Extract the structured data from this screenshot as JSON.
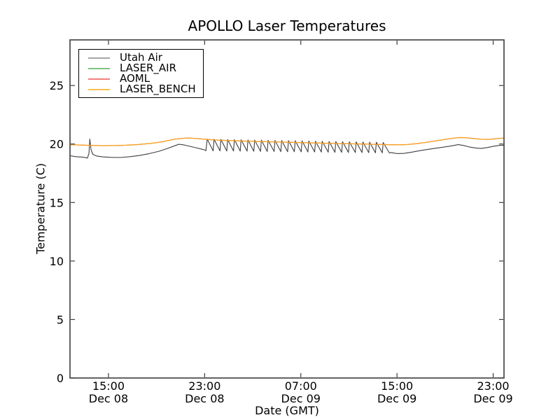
{
  "chart_data": {
    "type": "line",
    "title": "APOLLO Laser Temperatures",
    "xlabel": "Date (GMT)",
    "ylabel": "Temperature (C)",
    "xlim_hours": [
      11.8,
      47.9
    ],
    "ylim": [
      0,
      28.9
    ],
    "grid": false,
    "tick_direction": "in",
    "axis_color": "#3c3c3c",
    "x_ticks": [
      {
        "hour": 15,
        "time": "15:00",
        "date": "Dec 08"
      },
      {
        "hour": 23,
        "time": "23:00",
        "date": "Dec 08"
      },
      {
        "hour": 31,
        "time": "07:00",
        "date": "Dec 09"
      },
      {
        "hour": 39,
        "time": "15:00",
        "date": "Dec 09"
      },
      {
        "hour": 47,
        "time": "23:00",
        "date": "Dec 09"
      }
    ],
    "y_ticks": [
      {
        "value": 0,
        "label": "0"
      },
      {
        "value": 5,
        "label": "5"
      },
      {
        "value": 10,
        "label": "10"
      },
      {
        "value": 15,
        "label": "15"
      },
      {
        "value": 20,
        "label": "20"
      },
      {
        "value": 25,
        "label": "25"
      }
    ],
    "legend": {
      "position": "upper-left",
      "entries": [
        {
          "label": "Utah Air",
          "color": "#a6a6a6"
        },
        {
          "label": "LASER_AIR",
          "color": "#7cc47c"
        },
        {
          "label": "AOML",
          "color": "#f57f7f"
        },
        {
          "label": "LASER_BENCH",
          "color": "#fdbe53"
        }
      ]
    },
    "series": [
      {
        "name": "Utah Air",
        "color": "#3f3f3f",
        "width": 1.1,
        "points": [
          [
            11.8,
            19.0
          ],
          [
            12.3,
            18.92
          ],
          [
            12.9,
            18.87
          ],
          [
            13.25,
            18.8
          ],
          [
            13.38,
            19.2
          ],
          [
            13.45,
            20.42
          ],
          [
            13.55,
            19.5
          ],
          [
            13.7,
            19.12
          ],
          [
            14.0,
            18.98
          ],
          [
            14.5,
            18.9
          ],
          [
            15.2,
            18.86
          ],
          [
            16.0,
            18.85
          ],
          [
            16.8,
            18.92
          ],
          [
            17.6,
            19.02
          ],
          [
            18.4,
            19.18
          ],
          [
            19.2,
            19.38
          ],
          [
            19.9,
            19.62
          ],
          [
            20.5,
            19.85
          ],
          [
            20.85,
            19.98
          ],
          [
            21.3,
            19.92
          ],
          [
            21.8,
            19.8
          ],
          [
            22.3,
            19.68
          ],
          [
            22.7,
            19.58
          ],
          [
            23.0,
            19.5
          ],
          [
            23.1,
            19.42
          ],
          [
            23.22,
            20.42
          ],
          [
            23.71,
            19.41
          ],
          [
            23.78,
            20.41
          ],
          [
            24.28,
            19.41
          ],
          [
            24.35,
            20.4
          ],
          [
            24.84,
            19.4
          ],
          [
            24.91,
            20.39
          ],
          [
            25.4,
            19.4
          ],
          [
            25.47,
            20.38
          ],
          [
            25.96,
            19.39
          ],
          [
            26.03,
            20.37
          ],
          [
            26.53,
            19.39
          ],
          [
            26.6,
            20.35
          ],
          [
            27.09,
            19.38
          ],
          [
            27.16,
            20.34
          ],
          [
            27.65,
            19.37
          ],
          [
            27.72,
            20.33
          ],
          [
            28.21,
            19.36
          ],
          [
            28.28,
            20.32
          ],
          [
            28.78,
            19.36
          ],
          [
            28.85,
            20.31
          ],
          [
            29.34,
            19.35
          ],
          [
            29.41,
            20.3
          ],
          [
            29.9,
            19.34
          ],
          [
            29.97,
            20.29
          ],
          [
            30.46,
            19.34
          ],
          [
            30.53,
            20.28
          ],
          [
            31.03,
            19.33
          ],
          [
            31.1,
            20.27
          ],
          [
            31.59,
            19.32
          ],
          [
            31.66,
            20.26
          ],
          [
            32.15,
            19.32
          ],
          [
            32.22,
            20.24
          ],
          [
            32.71,
            19.31
          ],
          [
            32.78,
            20.23
          ],
          [
            33.28,
            19.3
          ],
          [
            33.35,
            20.22
          ],
          [
            33.84,
            19.29
          ],
          [
            33.91,
            20.21
          ],
          [
            34.4,
            19.29
          ],
          [
            34.47,
            20.2
          ],
          [
            34.96,
            19.28
          ],
          [
            35.03,
            20.19
          ],
          [
            35.53,
            19.27
          ],
          [
            35.6,
            20.18
          ],
          [
            36.09,
            19.27
          ],
          [
            36.16,
            20.17
          ],
          [
            36.65,
            19.26
          ],
          [
            36.72,
            20.16
          ],
          [
            37.21,
            19.25
          ],
          [
            37.28,
            20.15
          ],
          [
            37.78,
            19.25
          ],
          [
            37.85,
            20.13
          ],
          [
            38.36,
            19.24
          ],
          [
            38.55,
            19.28
          ],
          [
            38.75,
            19.22
          ],
          [
            39.1,
            19.18
          ],
          [
            39.6,
            19.2
          ],
          [
            40.2,
            19.3
          ],
          [
            41.0,
            19.45
          ],
          [
            41.8,
            19.58
          ],
          [
            42.6,
            19.7
          ],
          [
            43.4,
            19.82
          ],
          [
            44.1,
            19.95
          ],
          [
            44.5,
            19.88
          ],
          [
            45.0,
            19.75
          ],
          [
            45.6,
            19.65
          ],
          [
            46.0,
            19.62
          ],
          [
            46.5,
            19.7
          ],
          [
            47.0,
            19.8
          ],
          [
            47.5,
            19.88
          ],
          [
            47.9,
            19.9
          ]
        ]
      },
      {
        "name": "LASER_AIR",
        "color": "#6abf69",
        "width": 1.1,
        "points_same_as": "LASER_BENCH"
      },
      {
        "name": "AOML",
        "color": "#f2665c",
        "width": 1.1,
        "points_same_as": "LASER_BENCH"
      },
      {
        "name": "LASER_BENCH",
        "color": "#ffa11c",
        "width": 1.2,
        "points": [
          [
            11.8,
            19.95
          ],
          [
            12.5,
            19.92
          ],
          [
            13.5,
            19.88
          ],
          [
            14.5,
            19.86
          ],
          [
            15.5,
            19.87
          ],
          [
            16.5,
            19.9
          ],
          [
            17.5,
            19.96
          ],
          [
            18.5,
            20.05
          ],
          [
            19.3,
            20.16
          ],
          [
            20.0,
            20.3
          ],
          [
            20.6,
            20.42
          ],
          [
            21.2,
            20.49
          ],
          [
            21.7,
            20.51
          ],
          [
            22.2,
            20.48
          ],
          [
            22.8,
            20.43
          ],
          [
            23.4,
            20.38
          ],
          [
            24.2,
            20.33
          ],
          [
            25.5,
            20.28
          ],
          [
            27.0,
            20.23
          ],
          [
            28.5,
            20.19
          ],
          [
            30.0,
            20.15
          ],
          [
            31.5,
            20.11
          ],
          [
            33.0,
            20.07
          ],
          [
            34.5,
            20.03
          ],
          [
            36.0,
            20.0
          ],
          [
            37.2,
            19.97
          ],
          [
            38.3,
            19.95
          ],
          [
            39.2,
            19.93
          ],
          [
            39.9,
            19.96
          ],
          [
            40.7,
            20.04
          ],
          [
            41.5,
            20.15
          ],
          [
            42.3,
            20.28
          ],
          [
            43.1,
            20.41
          ],
          [
            43.8,
            20.51
          ],
          [
            44.3,
            20.56
          ],
          [
            44.8,
            20.53
          ],
          [
            45.4,
            20.47
          ],
          [
            46.0,
            20.41
          ],
          [
            46.5,
            20.39
          ],
          [
            47.0,
            20.43
          ],
          [
            47.5,
            20.48
          ],
          [
            47.9,
            20.51
          ]
        ]
      }
    ]
  }
}
